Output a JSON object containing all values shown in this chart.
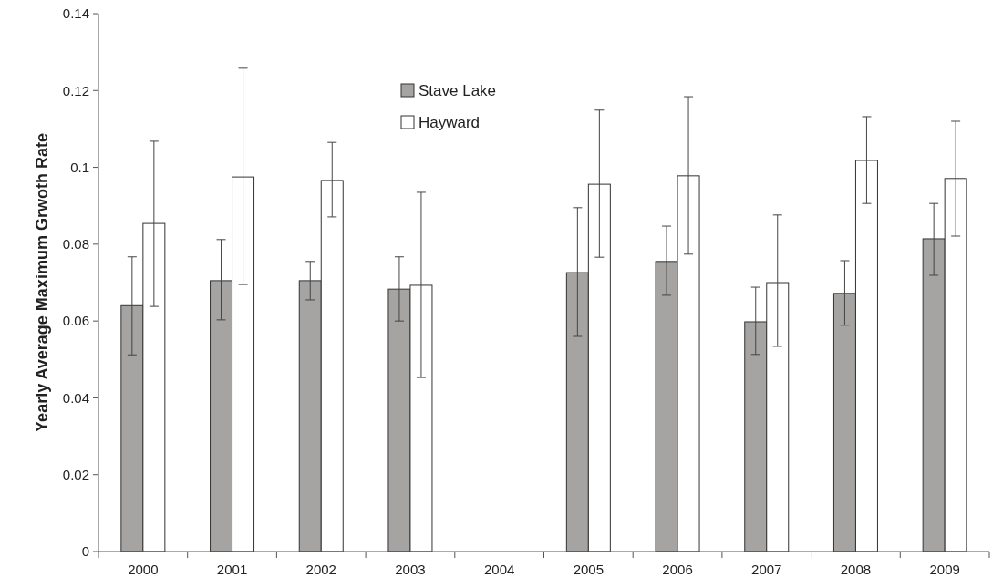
{
  "chart_data": {
    "type": "bar",
    "ylabel": "Yearly Average Maximum Grwoth Rate",
    "categories": [
      "2000",
      "2001",
      "2002",
      "2003",
      "2004",
      "2005",
      "2006",
      "2007",
      "2008",
      "2009"
    ],
    "series": [
      {
        "name": "Stave Lake",
        "color": "#a6a3a3",
        "values": [
          0.064,
          0.0705,
          0.0705,
          0.0683,
          null,
          0.0726,
          0.0755,
          0.0598,
          0.0672,
          0.0814
        ],
        "errors": [
          [
            0.0512,
            0.0767
          ],
          [
            0.0603,
            0.0812
          ],
          [
            0.0655,
            0.0755
          ],
          [
            0.06,
            0.0767
          ],
          null,
          [
            0.056,
            0.0895
          ],
          [
            0.0667,
            0.0847
          ],
          [
            0.0513,
            0.0688
          ],
          [
            0.0589,
            0.0757
          ],
          [
            0.0719,
            0.0906
          ]
        ]
      },
      {
        "name": "Hayward",
        "color": "#ffffff",
        "values": [
          0.0854,
          0.0975,
          0.0966,
          0.0693,
          null,
          0.0956,
          0.0978,
          0.07,
          0.1018,
          0.0971
        ],
        "errors": [
          [
            0.0638,
            0.1068
          ],
          [
            0.0695,
            0.1258
          ],
          [
            0.0871,
            0.1065
          ],
          [
            0.0453,
            0.0935
          ],
          null,
          [
            0.0766,
            0.1149
          ],
          [
            0.0774,
            0.1184
          ],
          [
            0.0534,
            0.0876
          ],
          [
            0.0906,
            0.1132
          ],
          [
            0.0821,
            0.112
          ]
        ]
      }
    ],
    "ylim": [
      0,
      0.14
    ],
    "yticks": [
      0,
      0.02,
      0.04,
      0.06,
      0.08,
      0.1,
      0.12,
      0.14
    ],
    "legend": "top",
    "grid": false
  }
}
